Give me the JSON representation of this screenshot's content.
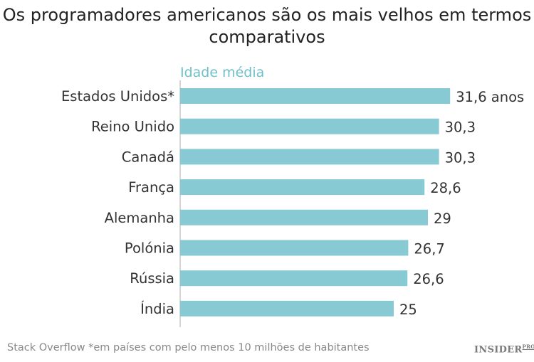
{
  "chart_data": {
    "type": "bar",
    "orientation": "horizontal",
    "title": "Os programadores americanos são os mais velhos em termos comparativos",
    "xlabel": "Idade média",
    "ylabel": "",
    "categories": [
      "Estados Unidos*",
      "Reino Unido",
      "Canadá",
      "França",
      "Alemanha",
      "Polónia",
      "Rússia",
      "Índia"
    ],
    "values": [
      31.6,
      30.3,
      30.3,
      28.6,
      29,
      26.7,
      26.6,
      25
    ],
    "data_labels": [
      "31,6 anos",
      "30,3",
      "30,3",
      "28,6",
      "29",
      "26,7",
      "26,6",
      "25"
    ],
    "xlim": [
      0,
      33
    ],
    "grid": false,
    "colors": {
      "bar": "#87cad4",
      "axis_label": "#6fc0c9"
    }
  },
  "footer": {
    "source": "Stack Overflow *em países com pelo menos 10 milhões de habitantes",
    "logo": "INSIDER",
    "logo_sup": "PRO"
  }
}
